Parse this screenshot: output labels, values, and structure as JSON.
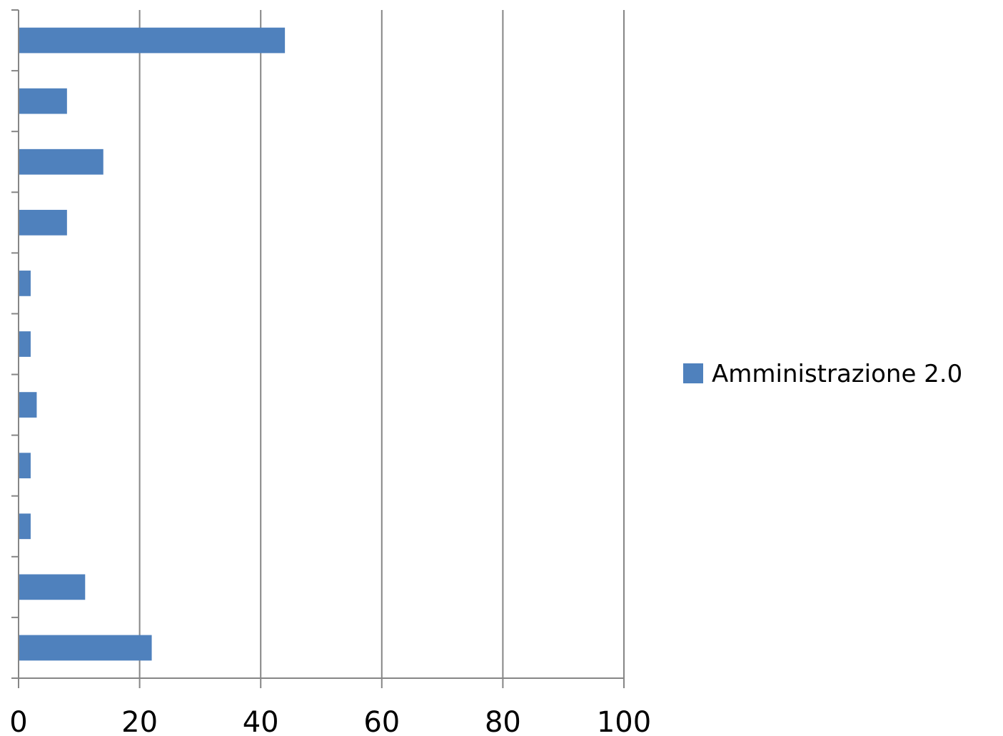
{
  "chart_data": {
    "type": "bar",
    "orientation": "horizontal",
    "title": "",
    "xlabel": "",
    "ylabel": "",
    "xlim": [
      0,
      100
    ],
    "x_ticks": [
      "0",
      "20",
      "40",
      "60",
      "80",
      "100"
    ],
    "grid": "vertical major gridlines",
    "legend_placement": "right",
    "series": [
      {
        "name": "Amministrazione 2.0",
        "color": "#4F81BD",
        "values": [
          44,
          8,
          14,
          8,
          2,
          2,
          3,
          2,
          2,
          11,
          22
        ]
      }
    ]
  }
}
